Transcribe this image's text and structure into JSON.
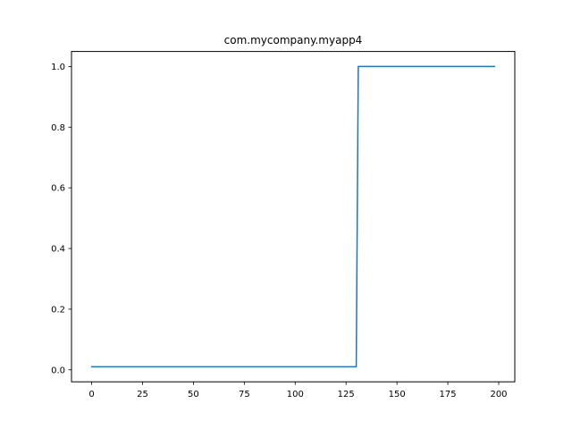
{
  "chart_data": {
    "type": "line",
    "title": "com.mycompany.myapp4",
    "xlabel": "",
    "ylabel": "",
    "xlim": [
      -9.9,
      207.9
    ],
    "ylim": [
      -0.0395,
      1.0495
    ],
    "x_ticks": [
      0,
      25,
      50,
      75,
      100,
      125,
      150,
      175,
      200
    ],
    "x_tick_labels": [
      "0",
      "25",
      "50",
      "75",
      "100",
      "125",
      "150",
      "175",
      "200"
    ],
    "y_ticks": [
      0.0,
      0.2,
      0.4,
      0.6,
      0.8,
      1.0
    ],
    "y_tick_labels": [
      "0.0",
      "0.2",
      "0.4",
      "0.6",
      "0.8",
      "1.0"
    ],
    "grid": false,
    "legend": "none",
    "series": [
      {
        "color": "#1f77b4",
        "x": [
          0,
          130,
          131,
          198
        ],
        "y": [
          0.01,
          0.01,
          1.0,
          1.0
        ]
      }
    ]
  }
}
